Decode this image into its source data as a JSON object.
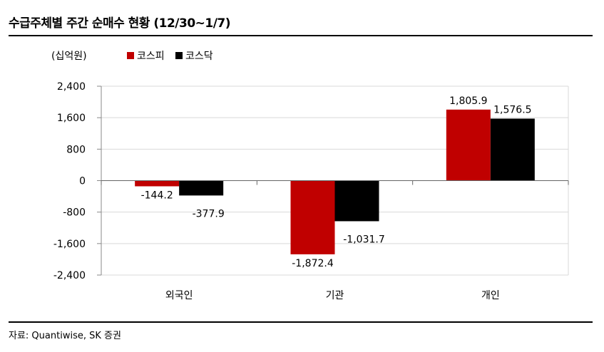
{
  "title": "수급주체별 주간 순매수 현황 (12/30~1/7)",
  "source": "자료: Quantiwise, SK 증권",
  "chart_data": {
    "type": "bar",
    "title": "수급주체별 주간 순매수 현황 (12/30~1/7)",
    "ylabel": "(십억원)",
    "categories": [
      "외국인",
      "기관",
      "개인"
    ],
    "series": [
      {
        "name": "코스피",
        "color": "#c00000",
        "values": [
          -144.2,
          -1872.4,
          1805.9
        ],
        "labels": [
          "-144.2",
          "-1,872.4",
          "1,805.9"
        ]
      },
      {
        "name": "코스닥",
        "color": "#000000",
        "values": [
          -377.9,
          -1031.7,
          1576.5
        ],
        "labels": [
          "-377.9",
          "-1,031.7",
          "1,576.5"
        ]
      }
    ],
    "ylim": [
      -2400,
      2400
    ],
    "yticks": [
      2400,
      1600,
      800,
      0,
      -800,
      -1600,
      -2400
    ],
    "ytick_labels": [
      "2,400",
      "1,600",
      "800",
      "0",
      "-800",
      "-1,600",
      "-2,400"
    ],
    "grid": true,
    "legend": "top-left"
  }
}
